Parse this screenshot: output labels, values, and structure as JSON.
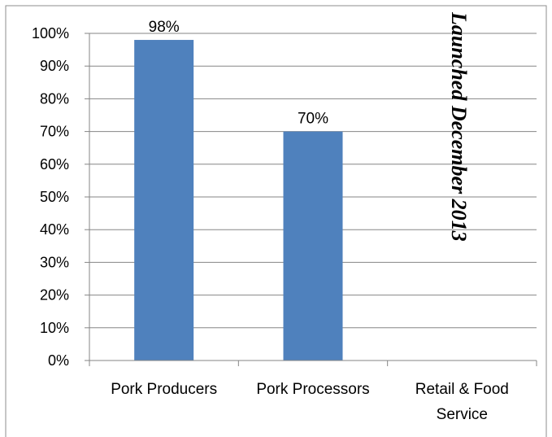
{
  "chart_data": {
    "type": "bar",
    "categories": [
      [
        "Pork Producers"
      ],
      [
        "Pork Processors"
      ],
      [
        "Retail & Food",
        "Service"
      ]
    ],
    "values": [
      98,
      70,
      null
    ],
    "data_labels": [
      "98%",
      "70%",
      ""
    ],
    "ylim": [
      0,
      100
    ],
    "ytick_step": 10,
    "ytick_labels": [
      "0%",
      "10%",
      "20%",
      "30%",
      "40%",
      "50%",
      "60%",
      "70%",
      "80%",
      "90%",
      "100%"
    ],
    "grid": true,
    "bar_color": "#4f81bd",
    "annotation": "Launched December 2013",
    "title": "",
    "xlabel": "",
    "ylabel": ""
  }
}
